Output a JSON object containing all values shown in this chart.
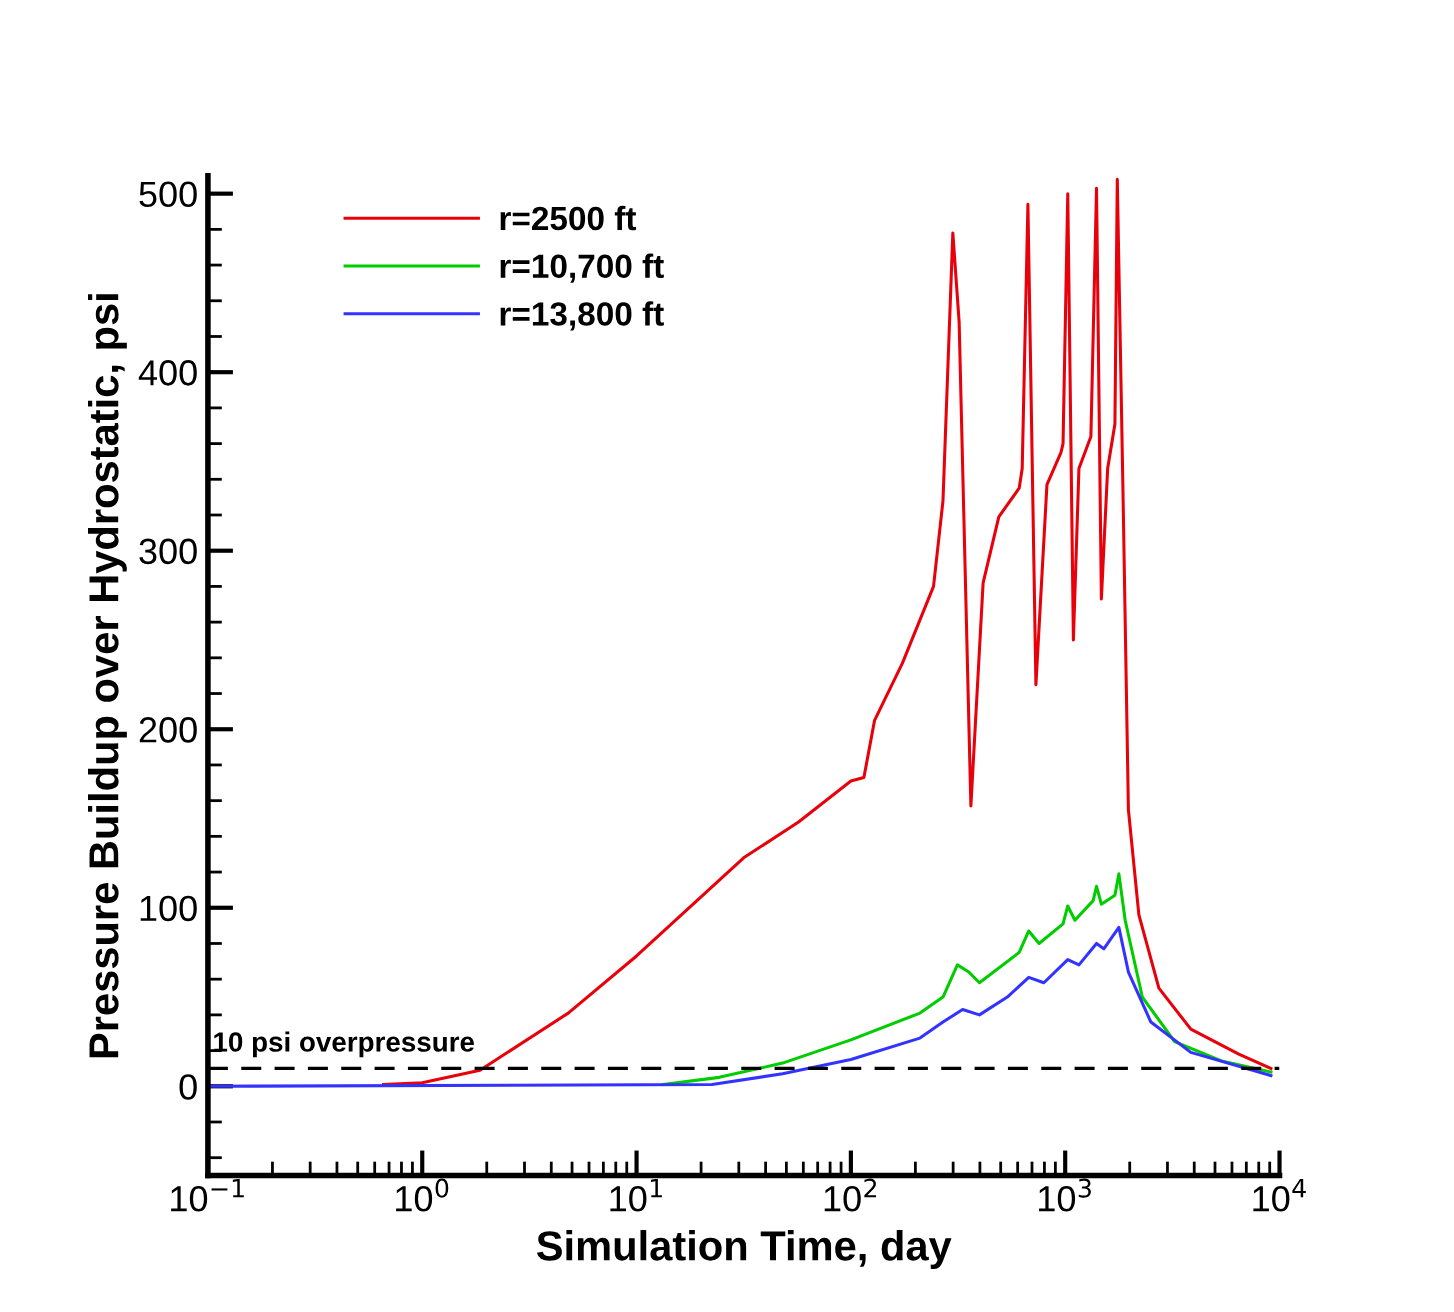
{
  "chart_data": {
    "type": "line",
    "xlabel": "Simulation Time, day",
    "ylabel": "Pressure Buildup over Hydrostatic, psi",
    "log": "x",
    "xlim": [
      0.1,
      10000
    ],
    "xticks": [
      {
        "value": 0.1,
        "label": "10$^{−1}$"
      },
      {
        "value": 1,
        "label": "10$^{0}$"
      },
      {
        "value": 10,
        "label": "10$^{1}$"
      },
      {
        "value": 100,
        "label": "10$^{2}$"
      },
      {
        "value": 1000,
        "label": "10$^{3}$"
      },
      {
        "value": 10000,
        "label": "10$^{4}$"
      }
    ],
    "ylim": [
      -50,
      510
    ],
    "yticks": [
      0,
      100,
      200,
      300,
      400,
      500
    ],
    "grid": false,
    "legend": "top left",
    "line_style": "solid",
    "marker": "none",
    "ref_lines": [
      {
        "axis": "y",
        "value": 10,
        "label": "10 psi overpressure",
        "color": "#000000",
        "line_style": "dashed"
      }
    ],
    "series": [
      {
        "name": "r=2500 ft",
        "color": "#e8000b",
        "x": [
          0.66,
          1,
          1.86,
          4.8,
          10,
          31.6,
          57,
          100,
          115,
          129,
          174,
          243,
          269,
          299,
          320,
          363,
          414,
          490,
          610,
          630,
          670,
          730,
          822,
          955,
          977,
          1028,
          1092,
          1159,
          1318,
          1400,
          1475,
          1578,
          1706,
          1750,
          1858,
          1972,
          2207,
          2736,
          3855,
          6455,
          9120
        ],
        "values": [
          1,
          2,
          9,
          41,
          73,
          128,
          148,
          171,
          173,
          205,
          237,
          280,
          328,
          478,
          428,
          157,
          282,
          319,
          335,
          346,
          494,
          225,
          337,
          355,
          360,
          500,
          250,
          346,
          364,
          503,
          273,
          346,
          371,
          508,
          337,
          155,
          96,
          55,
          32,
          18,
          10
        ]
      },
      {
        "name": "r=10,700 ft",
        "color": "#00cc00",
        "x": [
          13.3,
          24.3,
          48,
          100,
          210,
          269,
          314,
          355,
          398,
          610,
          676,
          755,
          977,
          1028,
          1110,
          1350,
          1400,
          1475,
          1706,
          1780,
          1905,
          2290,
          3240,
          5430,
          9120
        ],
        "values": [
          1,
          5,
          13,
          26,
          41,
          50,
          68,
          64,
          58,
          75,
          87,
          80,
          91,
          101,
          93,
          104,
          112,
          102,
          107,
          119,
          93,
          50,
          25,
          14,
          8
        ]
      },
      {
        "name": "r=13,800 ft",
        "color": "#3333ff",
        "x": [
          0.1,
          22.5,
          48,
          100,
          210,
          269,
          332,
          398,
          537,
          676,
          795,
          1028,
          1159,
          1400,
          1514,
          1780,
          1972,
          2510,
          3855,
          9120
        ],
        "values": [
          0,
          1,
          7,
          15,
          27,
          36,
          43,
          40,
          50,
          61,
          58,
          71,
          68,
          80,
          77,
          89,
          64,
          36,
          19,
          6
        ]
      }
    ]
  }
}
